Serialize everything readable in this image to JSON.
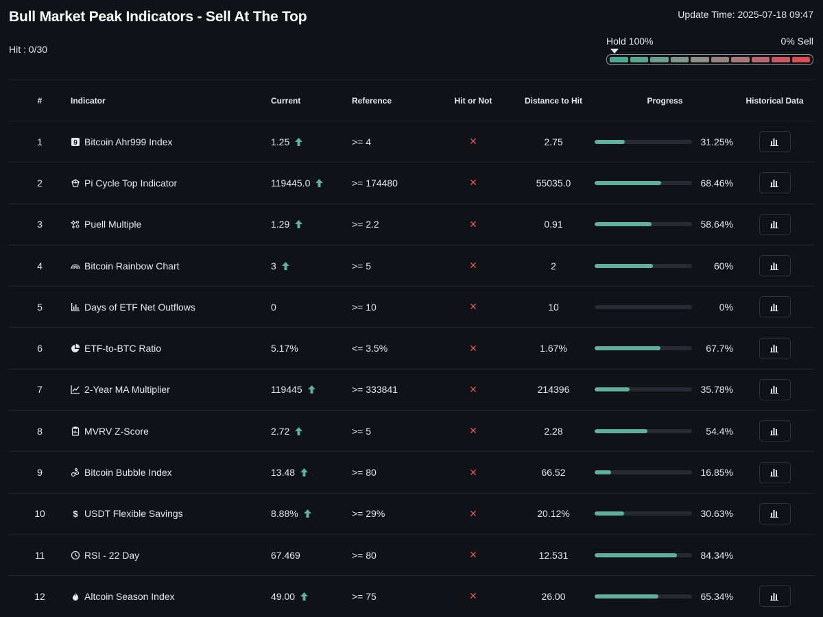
{
  "header": {
    "title": "Bull Market Peak Indicators - Sell At The Top",
    "update_time": "Update Time: 2025-07-18 09:47",
    "hit_label": "Hit : 0/30"
  },
  "gauge": {
    "left_label": "Hold 100%",
    "right_label": "0% Sell",
    "segments": [
      "#4ea98e",
      "#5aa68f",
      "#6c9f8d",
      "#7f988a",
      "#8f8f86",
      "#9a8480",
      "#a87a7b",
      "#b8696d",
      "#c9595f",
      "#dc4e52"
    ]
  },
  "colors": {
    "accent": "#5fb19a",
    "miss": "#e05555",
    "background": "#0f1217"
  },
  "table": {
    "headers": {
      "num": "#",
      "indicator": "Indicator",
      "current": "Current",
      "reference": "Reference",
      "hit": "Hit or Not",
      "distance": "Distance to Hit",
      "progress": "Progress",
      "historical": "Historical Data"
    },
    "rows": [
      {
        "num": "1",
        "icon": "nine-icon",
        "indicator": "Bitcoin Ahr999 Index",
        "current": "1.25",
        "up": true,
        "reference": ">= 4",
        "hit": "✕",
        "distance": "2.75",
        "progress": 31.25,
        "progress_text": "31.25%",
        "has_hist": true
      },
      {
        "num": "2",
        "icon": "cycle-icon",
        "indicator": "Pi Cycle Top Indicator",
        "current": "119445.0",
        "up": true,
        "reference": ">= 174480",
        "hit": "✕",
        "distance": "55035.0",
        "progress": 68.46,
        "progress_text": "68.46%",
        "has_hist": true
      },
      {
        "num": "3",
        "icon": "sparkle-icon",
        "indicator": "Puell Multiple",
        "current": "1.29",
        "up": true,
        "reference": ">= 2.2",
        "hit": "✕",
        "distance": "0.91",
        "progress": 58.64,
        "progress_text": "58.64%",
        "has_hist": true
      },
      {
        "num": "4",
        "icon": "rainbow-icon",
        "indicator": "Bitcoin Rainbow Chart",
        "current": "3",
        "up": true,
        "reference": ">= 5",
        "hit": "✕",
        "distance": "2",
        "progress": 60,
        "progress_text": "60%",
        "has_hist": true
      },
      {
        "num": "5",
        "icon": "bar-chart-icon",
        "indicator": "Days of ETF Net Outflows",
        "current": "0",
        "up": false,
        "reference": ">= 10",
        "hit": "✕",
        "distance": "10",
        "progress": 0,
        "progress_text": "0%",
        "has_hist": true
      },
      {
        "num": "6",
        "icon": "pie-chart-icon",
        "indicator": "ETF-to-BTC Ratio",
        "current": "5.17%",
        "up": false,
        "reference": "<= 3.5%",
        "hit": "✕",
        "distance": "1.67%",
        "progress": 67.7,
        "progress_text": "67.7%",
        "has_hist": true
      },
      {
        "num": "7",
        "icon": "line-chart-icon",
        "indicator": "2-Year MA Multiplier",
        "current": "119445",
        "up": true,
        "reference": ">= 333841",
        "hit": "✕",
        "distance": "214396",
        "progress": 35.78,
        "progress_text": "35.78%",
        "has_hist": true
      },
      {
        "num": "8",
        "icon": "clipboard-icon",
        "indicator": "MVRV Z-Score",
        "current": "2.72",
        "up": true,
        "reference": ">= 5",
        "hit": "✕",
        "distance": "2.28",
        "progress": 54.4,
        "progress_text": "54.4%",
        "has_hist": true
      },
      {
        "num": "9",
        "icon": "bubbles-icon",
        "indicator": "Bitcoin Bubble Index",
        "current": "13.48",
        "up": true,
        "reference": ">= 80",
        "hit": "✕",
        "distance": "66.52",
        "progress": 16.85,
        "progress_text": "16.85%",
        "has_hist": true
      },
      {
        "num": "10",
        "icon": "dollar-icon",
        "indicator": "USDT Flexible Savings",
        "current": "8.88%",
        "up": true,
        "reference": ">= 29%",
        "hit": "✕",
        "distance": "20.12%",
        "progress": 30.63,
        "progress_text": "30.63%",
        "has_hist": true
      },
      {
        "num": "11",
        "icon": "clock-icon",
        "indicator": "RSI - 22 Day",
        "current": "67.469",
        "up": false,
        "reference": ">= 80",
        "hit": "✕",
        "distance": "12.531",
        "progress": 84.34,
        "progress_text": "84.34%",
        "has_hist": false
      },
      {
        "num": "12",
        "icon": "flame-icon",
        "indicator": "Altcoin Season Index",
        "current": "49.00",
        "up": true,
        "reference": ">= 75",
        "hit": "✕",
        "distance": "26.00",
        "progress": 65.34,
        "progress_text": "65.34%",
        "has_hist": true
      }
    ]
  }
}
